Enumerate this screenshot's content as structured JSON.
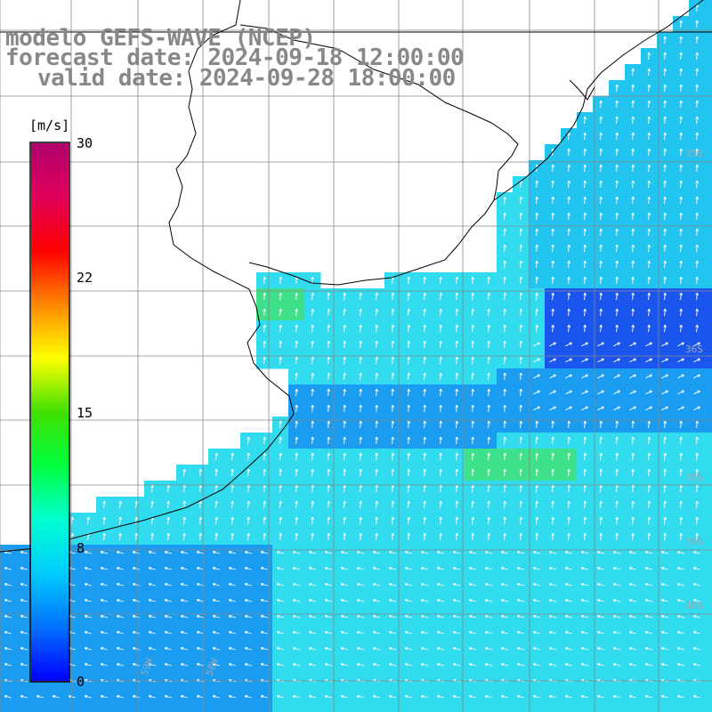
{
  "title": {
    "line1": "modelo GEFS-WAVE (NCEP)",
    "line2": "forecast date: 2024-09-18 12:00:00",
    "line3": "valid date: 2024-09-28 18:00:00"
  },
  "colorbar": {
    "unit": "[m/s]",
    "ticks": [
      {
        "label": "30",
        "value": 30
      },
      {
        "label": "22",
        "value": 22
      },
      {
        "label": "15",
        "value": 15
      },
      {
        "label": "8",
        "value": 8
      },
      {
        "label": "0",
        "value": 0
      }
    ],
    "colors": [
      "#0000ff",
      "#0070ff",
      "#00ccff",
      "#00ffd0",
      "#00ff40",
      "#40e000",
      "#ffff00",
      "#ff8800",
      "#ff0000",
      "#e0005a",
      "#b0006e"
    ]
  },
  "map": {
    "land_color": "#ffffff",
    "coast_color": "#000000",
    "grid_color": "#888888",
    "field_colors": {
      "dark": "#1a55ee",
      "mid": "#1a9cf0",
      "light": "#22c4f0",
      "cyan": "#30dcee",
      "green": "#3ee08a"
    },
    "lat_labels": [
      "35S",
      "36S",
      "38S",
      "39S",
      "40S"
    ],
    "lon_labels": [
      "59W",
      "58W"
    ]
  }
}
